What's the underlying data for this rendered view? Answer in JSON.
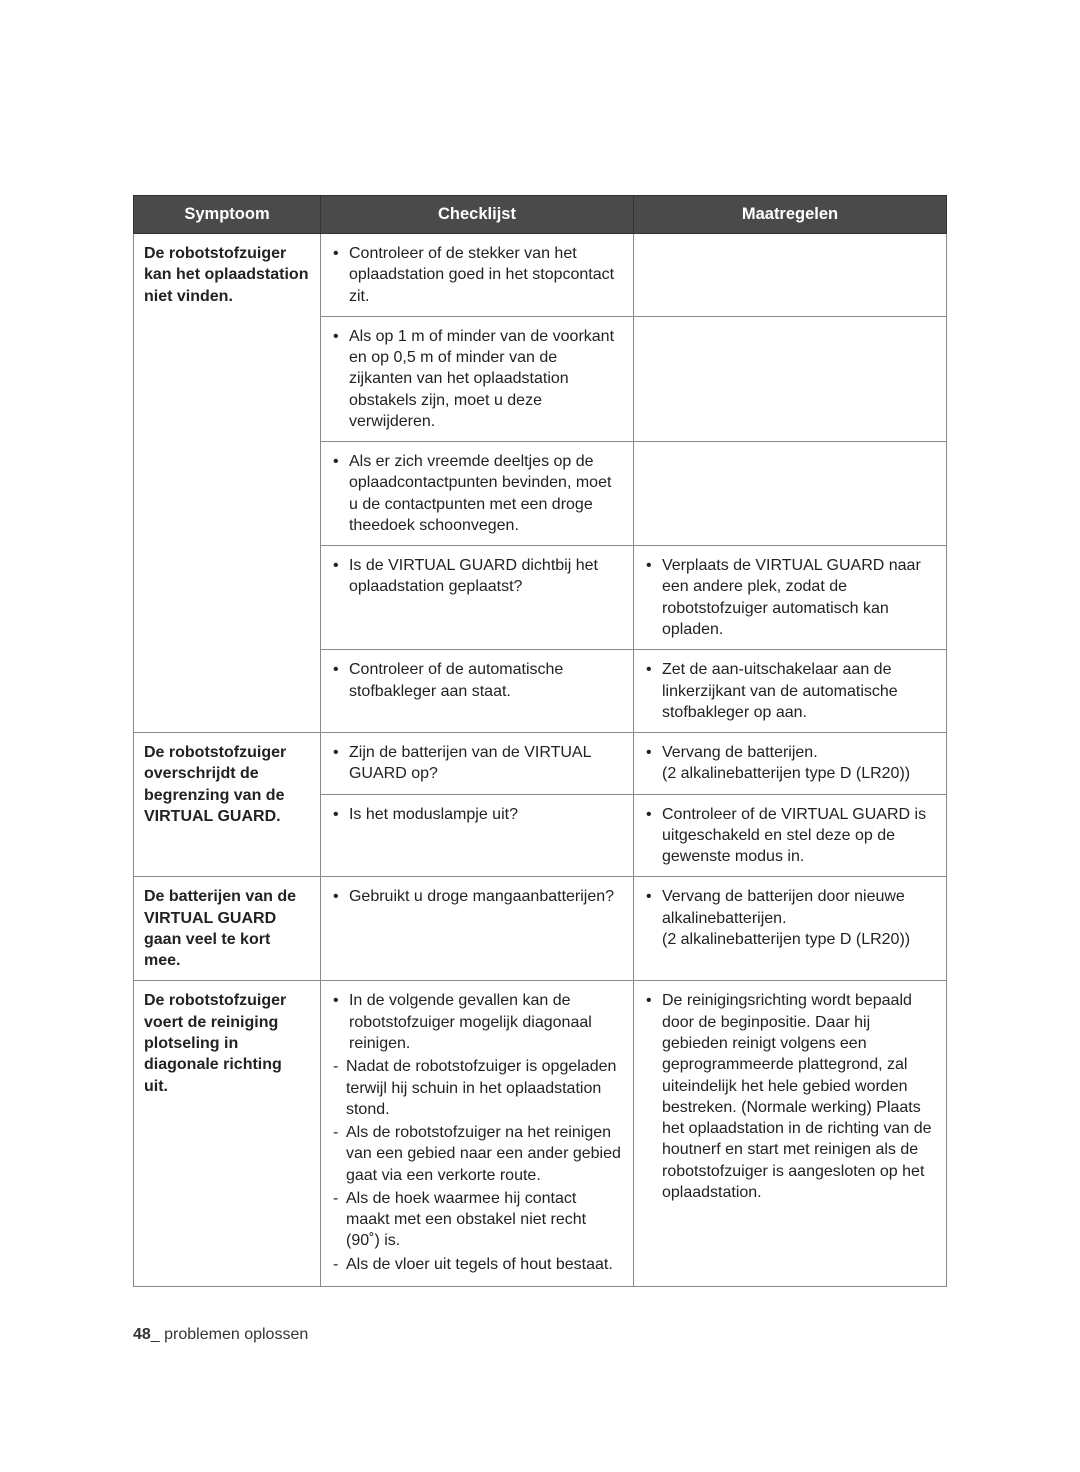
{
  "headers": {
    "symptom": "Symptoom",
    "checklist": "Checklijst",
    "action": "Maatregelen"
  },
  "rows": {
    "r1": {
      "symptom": "De robotstofzuiger kan het oplaadstation niet vinden.",
      "c1": "Controleer of de stekker van het oplaadstation goed in het stopcontact zit.",
      "c2": "Als op 1 m of minder van de voorkant en op 0,5 m of minder van de zijkanten van het oplaadstation obstakels zijn, moet u deze verwijderen.",
      "c3": "Als er zich vreemde deeltjes op de oplaadcontactpunten bevinden, moet u de contactpunten met een droge theedoek schoonvegen.",
      "c4": "Is de VIRTUAL GUARD dichtbij het oplaadstation geplaatst?",
      "a4": "Verplaats de VIRTUAL GUARD naar een andere plek, zodat de robotstofzuiger automatisch kan opladen.",
      "c5": "Controleer of de automatische stofbakleger aan staat.",
      "a5": "Zet de aan-uitschakelaar aan de linkerzijkant van de automatische stofbakleger op aan."
    },
    "r2": {
      "symptom": "De robotstofzuiger overschrijdt de begrenzing van de VIRTUAL GUARD.",
      "c1": "Zijn de batterijen van de VIRTUAL GUARD op?",
      "a1a": "Vervang de batterijen.",
      "a1b": "(2 alkalinebatterijen type D (LR20))",
      "c2": "Is het moduslampje uit?",
      "a2": "Controleer of de VIRTUAL GUARD is uitgeschakeld en stel deze op de gewenste modus in."
    },
    "r3": {
      "symptom": "De batterijen van de VIRTUAL GUARD gaan veel te kort mee.",
      "c1": "Gebruikt u droge mangaanbatterijen?",
      "a1a": "Vervang de batterijen door nieuwe alkalinebatterijen.",
      "a1b": "(2 alkalinebatterijen type D (LR20))"
    },
    "r4": {
      "symptom": "De robotstofzuiger voert de reiniging plotseling in diagonale richting uit.",
      "c_intro": "In de volgende gevallen kan de robotstofzuiger mogelijk diagonaal reinigen.",
      "c_d1": "Nadat de robotstofzuiger is opgeladen terwijl hij schuin in het oplaadstation stond.",
      "c_d2": "Als de robotstofzuiger na het reinigen van een gebied naar een ander gebied gaat via een verkorte route.",
      "c_d3": "Als de hoek waarmee hij contact maakt met een obstakel niet recht (90˚) is.",
      "c_d4": "Als de vloer uit tegels of hout bestaat.",
      "a1": "De reinigingsrichting wordt bepaald door de beginpositie. Daar hij gebieden reinigt volgens een geprogrammeerde plattegrond, zal uiteindelijk het hele gebied worden bestreken. (Normale werking) Plaats het oplaadstation in de richting van de houtnerf en start met reinigen als de robotstofzuiger is aangesloten op het oplaadstation."
    }
  },
  "footer": {
    "page": "48",
    "sep": "_",
    "section": " problemen oplossen"
  }
}
